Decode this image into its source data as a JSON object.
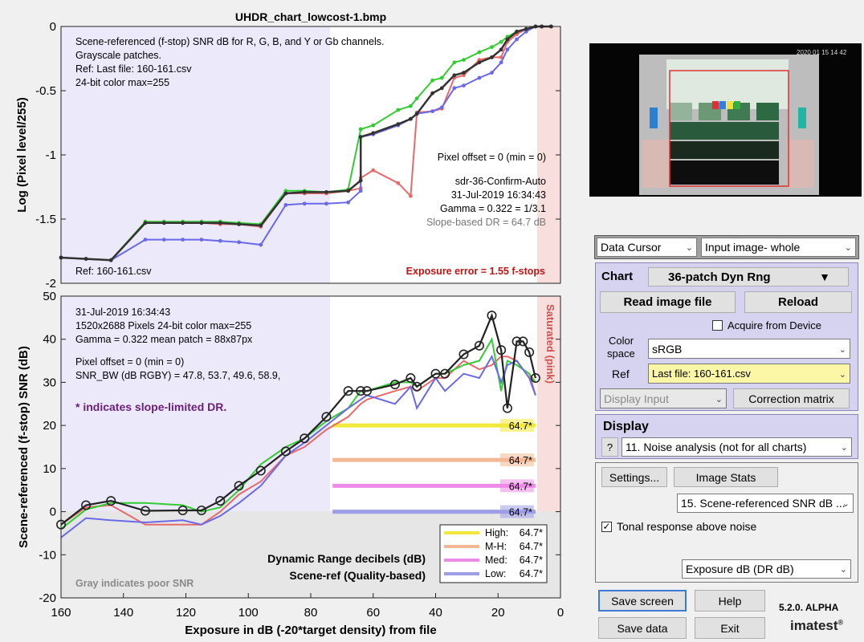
{
  "top_chart": {
    "title": "UHDR_chart_lowcost-1.bmp",
    "ylabel": "Log (Pixel level/255)",
    "yticks": [
      "0",
      "-0.5",
      "-1",
      "-1.5",
      "-2"
    ],
    "info_lines": [
      "Scene-referenced (f-stop) SNR dB for R, G, B, and Y or Gb channels.",
      "Grayscale patches.",
      "Ref: Last file: 160-161.csv",
      "24-bit color  max=255"
    ],
    "right_info": {
      "pixel_offset": "Pixel offset = 0  (min = 0)",
      "profile": "sdr-36-Confirm-Auto",
      "date": "31-Jul-2019 16:34:43",
      "gamma": "Gamma = 0.322 = 1/3.1",
      "slope_dr": "Slope-based DR = 64.7 dB"
    },
    "ref_label": "Ref: 160-161.csv",
    "exposure_error": "Exposure error = 1.55 f-stops"
  },
  "bottom_chart": {
    "ylabel": "Scene-referenced (f-stop) SNR (dB)",
    "xlabel": "Exposure in dB (-20*target density)   from file",
    "yticks": [
      "50",
      "40",
      "30",
      "20",
      "10",
      "0",
      "-10",
      "-20"
    ],
    "xticks": [
      "160",
      "140",
      "120",
      "100",
      "80",
      "60",
      "40",
      "20",
      "0"
    ],
    "info_lines": [
      "31-Jul-2019 16:34:43",
      "1520x2688 Pixels   24-bit color  max=255",
      "Gamma = 0.322   mean patch = 88x87px",
      "Pixel offset = 0  (min = 0)",
      "SNR_BW (dB RGBY) = 47.8, 53.7, 49.6, 58.9,"
    ],
    "slope_note": "* indicates slope-limited DR.",
    "saturated_label": "Saturated (pink)",
    "dr_title_1": "Dynamic Range decibels (dB)",
    "dr_title_2": "Scene-ref (Quality-based)",
    "gray_note": "Gray indicates poor SNR",
    "dr_bar_labels": [
      "64.7*",
      "64.7*",
      "64.7*",
      "64.7*"
    ],
    "legend": [
      {
        "label": "High:",
        "value": "64.7*",
        "color": "#f2ea3a"
      },
      {
        "label": "M-H:",
        "value": "64.7*",
        "color": "#f2b893"
      },
      {
        "label": "Med:",
        "value": "64.7*",
        "color": "#ee8be8"
      },
      {
        "label": "Low:",
        "value": "64.7*",
        "color": "#9e9ee8"
      }
    ]
  },
  "chart_data": [
    {
      "type": "line",
      "title": "UHDR_chart_lowcost-1.bmp",
      "xlabel": "",
      "ylabel": "Log (Pixel level/255)",
      "xlim": [
        160,
        0
      ],
      "ylim": [
        -2,
        0
      ],
      "x": [
        160,
        152,
        144,
        133,
        127,
        121,
        115,
        109,
        103,
        96,
        88,
        82,
        75,
        68,
        64,
        64,
        60,
        52,
        48,
        46,
        41,
        38,
        34,
        31,
        26,
        22,
        19,
        17,
        14,
        11,
        8,
        6,
        3
      ],
      "series": [
        {
          "name": "R",
          "color": "#e86a6a",
          "values": [
            -1.8,
            -1.81,
            -1.82,
            -1.53,
            -1.53,
            -1.53,
            -1.53,
            -1.54,
            -1.54,
            -1.56,
            -1.3,
            -1.3,
            -1.3,
            -1.28,
            -1.26,
            -1.18,
            -1.12,
            -1.22,
            -1.32,
            -0.67,
            -0.66,
            -0.64,
            -0.4,
            -0.38,
            -0.26,
            -0.24,
            -0.24,
            -0.12,
            -0.06,
            -0.02,
            0.0,
            0.0,
            0.0
          ]
        },
        {
          "name": "G",
          "color": "#33cc33",
          "values": [
            -1.8,
            -1.81,
            -1.82,
            -1.52,
            -1.52,
            -1.52,
            -1.52,
            -1.52,
            -1.53,
            -1.54,
            -1.28,
            -1.28,
            -1.29,
            -1.27,
            -0.8,
            -0.8,
            -0.77,
            -0.65,
            -0.62,
            -0.56,
            -0.42,
            -0.4,
            -0.28,
            -0.26,
            -0.2,
            -0.16,
            -0.12,
            -0.08,
            -0.04,
            -0.02,
            0.0,
            0.0,
            0.0
          ]
        },
        {
          "name": "B",
          "color": "#6a6ae8",
          "values": [
            -1.8,
            -1.81,
            -1.82,
            -1.66,
            -1.66,
            -1.66,
            -1.66,
            -1.67,
            -1.68,
            -1.7,
            -1.39,
            -1.38,
            -1.38,
            -1.37,
            -1.28,
            -0.86,
            -0.84,
            -0.77,
            -0.72,
            -0.68,
            -0.66,
            -0.63,
            -0.48,
            -0.46,
            -0.4,
            -0.36,
            -0.28,
            -0.18,
            -0.1,
            -0.04,
            0.0,
            0.0,
            0.0
          ]
        },
        {
          "name": "Y",
          "color": "#333333",
          "values": [
            -1.8,
            -1.81,
            -1.82,
            -1.53,
            -1.53,
            -1.53,
            -1.53,
            -1.53,
            -1.54,
            -1.55,
            -1.3,
            -1.29,
            -1.29,
            -1.28,
            -1.2,
            -0.86,
            -0.83,
            -0.76,
            -0.72,
            -0.68,
            -0.52,
            -0.48,
            -0.38,
            -0.36,
            -0.28,
            -0.24,
            -0.18,
            -0.1,
            -0.04,
            -0.02,
            0.0,
            0.0,
            0.0
          ]
        }
      ]
    },
    {
      "type": "line",
      "title": "",
      "xlabel": "Exposure in dB (-20*target density)   from file",
      "ylabel": "Scene-referenced (f-stop) SNR (dB)",
      "xlim": [
        160,
        0
      ],
      "ylim": [
        -20,
        50
      ],
      "x": [
        160,
        152,
        144,
        133,
        121,
        115,
        109,
        103,
        96,
        88,
        82,
        75,
        68,
        64,
        62,
        53,
        48,
        46,
        40,
        37,
        31,
        26,
        22,
        19,
        17,
        14,
        12,
        10,
        8
      ],
      "series": [
        {
          "name": "R",
          "color": "#e86a6a",
          "values": [
            -3,
            1.0,
            1.5,
            -3,
            -3,
            -3,
            0,
            4,
            7,
            13,
            15,
            19,
            22,
            25,
            26,
            28,
            29,
            28,
            31,
            31,
            35,
            33,
            34,
            36,
            36,
            35,
            33,
            32,
            27
          ]
        },
        {
          "name": "G",
          "color": "#33cc33",
          "values": [
            -4,
            0.5,
            2,
            2,
            1.5,
            0,
            1,
            5,
            11,
            15,
            17,
            21,
            24,
            28,
            28,
            30,
            30,
            29,
            32,
            32,
            34,
            35,
            40,
            28,
            35,
            34,
            33,
            32,
            30
          ]
        },
        {
          "name": "B",
          "color": "#6a6ae8",
          "values": [
            -6,
            -1.5,
            -2,
            -2.5,
            -2,
            -3,
            -1,
            2,
            6,
            13,
            16,
            20,
            24,
            26,
            27,
            25,
            29,
            24,
            31,
            28,
            32,
            31,
            36,
            30,
            34,
            35,
            33,
            31,
            27
          ]
        },
        {
          "name": "Y",
          "color": "#222222",
          "values": [
            -3,
            1.5,
            2.5,
            0.2,
            0.3,
            0.3,
            2.5,
            6,
            9.5,
            14,
            17,
            22,
            28,
            28,
            28,
            29.5,
            31,
            29,
            32,
            32,
            36.5,
            38.5,
            45.5,
            37.5,
            24,
            39.5,
            39.5,
            37,
            31
          ]
        }
      ],
      "dynamic_range": [
        {
          "level": "High",
          "value": "64.7*",
          "snr_threshold": 20
        },
        {
          "level": "M-H",
          "value": "64.7*",
          "snr_threshold": 12
        },
        {
          "level": "Med",
          "value": "64.7*",
          "snr_threshold": 6
        },
        {
          "level": "Low",
          "value": "64.7*",
          "snr_threshold": 0
        }
      ],
      "grid": false,
      "legend": "bottom-right"
    }
  ],
  "controls": {
    "data_cursor": "Data Cursor",
    "input_image": "Input image- whole",
    "chart_label": "Chart",
    "chart_value": "36-patch Dyn Rng",
    "read_image": "Read image file",
    "reload": "Reload",
    "acquire": "Acquire from Device",
    "color_space_label_1": "Color",
    "color_space_label_2": "space",
    "color_space": "sRGB",
    "ref_label": "Ref",
    "ref_value": "Last file: 160-161.csv",
    "display_input": "Display Input",
    "correction_matrix": "Correction matrix",
    "display_label": "Display",
    "help_q": "?",
    "display_value": "11. Noise analysis (not for all charts)",
    "settings": "Settings...",
    "image_stats": "Image Stats",
    "plot_select": "15. Scene-referenced SNR dB ...",
    "tonal_label": "Tonal response above noise",
    "tonal_checked": "✓",
    "exposure_select": "Exposure dB (DR dB)",
    "save_screen": "Save screen",
    "help": "Help",
    "save_data": "Save data",
    "exit": "Exit",
    "version": "5.2.0. ALPHA",
    "brand": "imatest",
    "brand_reg": "®"
  },
  "thumbnail": {
    "timestamp": "2020 01 15 14 42"
  }
}
